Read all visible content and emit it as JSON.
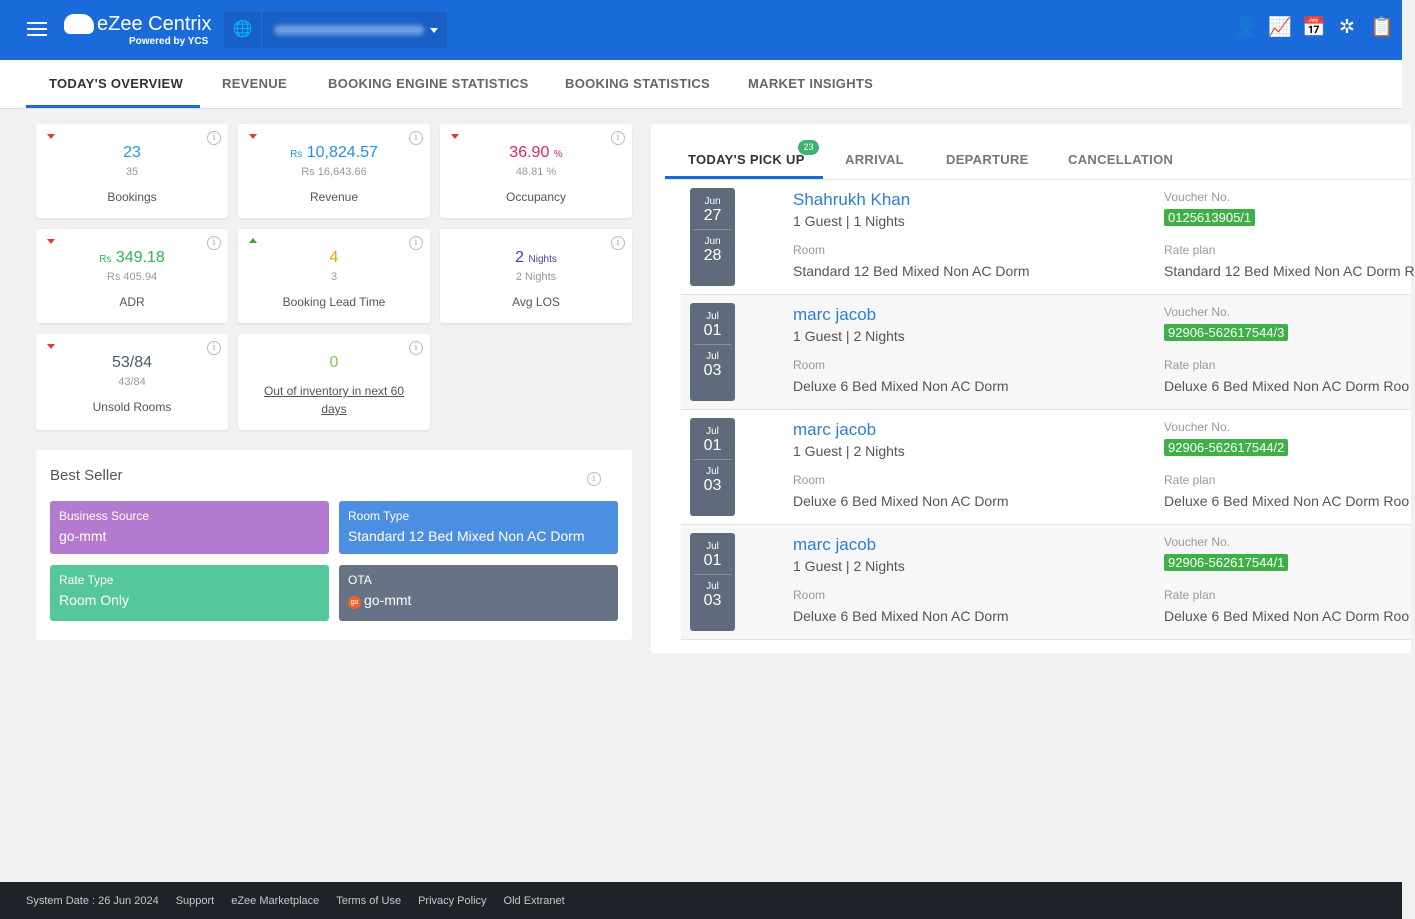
{
  "header": {
    "brand": "eZee Centrix",
    "powered": "Powered by YCS",
    "icons": [
      "user-clock-icon",
      "user-chart-icon",
      "calendar-plus-icon",
      "dollar-network-icon",
      "clipboard-calendar-icon"
    ]
  },
  "tabs": [
    "TODAY'S OVERVIEW",
    "REVENUE",
    "BOOKING ENGINE STATISTICS",
    "BOOKING STATISTICS",
    "MARKET INSIGHTS"
  ],
  "cards": [
    {
      "value": "23",
      "prev": "35",
      "label": "Bookings",
      "trend": "down",
      "color": "#1aa3c2"
    },
    {
      "prefix": "Rs",
      "value": "10,824.57",
      "prev": "Rs 16,643.66",
      "label": "Revenue",
      "trend": "down",
      "color": "#1e90e8"
    },
    {
      "value": "36.90",
      "suffix": "%",
      "prev": "48.81 %",
      "label": "Occupancy",
      "trend": "down",
      "color": "#e0245e"
    },
    {
      "prefix": "Rs",
      "value": "349.18",
      "prev": "Rs 405.94",
      "label": "ADR",
      "trend": "down",
      "color": "#2eb84f"
    },
    {
      "value": "4",
      "prev": "3",
      "label": "Booking Lead Time",
      "trend": "up",
      "color": "#f39c12"
    },
    {
      "value": "2",
      "suffix": "Nights",
      "prev": "2 Nights",
      "label": "Avg LOS",
      "color": "#4a3fa0"
    },
    {
      "value": "53/84",
      "prev": "43/84",
      "label": "Unsold Rooms",
      "trend": "down",
      "color": "#4a5a6a"
    },
    {
      "value": "0",
      "label": "Out of inventory in next 60 days",
      "color": "#8bc34a"
    }
  ],
  "best_seller": {
    "title": "Best Seller",
    "tiles": [
      {
        "key": "Business Source",
        "value": "go-mmt",
        "color": "#b47acf"
      },
      {
        "key": "Room Type",
        "value": "Standard 12 Bed Mixed Non AC Dorm",
        "color": "#4c8fe0"
      },
      {
        "key": "Rate Type",
        "value": "Room Only",
        "color": "#55c89b"
      },
      {
        "key": "OTA",
        "value": "go-mmt",
        "color": "#677385",
        "logo": "go"
      }
    ]
  },
  "pickup": {
    "tabs": [
      "TODAY'S PICK UP",
      "ARRIVAL",
      "DEPARTURE",
      "CANCELLATION"
    ],
    "badge": "23",
    "voucher_label": "Voucher No.",
    "room_label": "Room",
    "rate_label": "Rate plan",
    "rows": [
      {
        "in_m": "Jun",
        "in_d": "27",
        "out_m": "Jun",
        "out_d": "28",
        "name": "Shahrukh Khan",
        "info": "1 Guest | 1 Nights",
        "voucher": "0125613905/1",
        "room": "Standard 12 Bed Mixed Non AC Dorm",
        "rate": "Standard 12 Bed Mixed Non AC Dorm R"
      },
      {
        "in_m": "Jul",
        "in_d": "01",
        "out_m": "Jul",
        "out_d": "03",
        "name": "marc jacob",
        "info": "1 Guest | 2 Nights",
        "voucher": "92906-562617544/3",
        "room": "Deluxe 6 Bed Mixed Non AC Dorm",
        "rate": "Deluxe 6 Bed Mixed Non AC Dorm Roo"
      },
      {
        "in_m": "Jul",
        "in_d": "01",
        "out_m": "Jul",
        "out_d": "03",
        "name": "marc jacob",
        "info": "1 Guest | 2 Nights",
        "voucher": "92906-562617544/2",
        "room": "Deluxe 6 Bed Mixed Non AC Dorm",
        "rate": "Deluxe 6 Bed Mixed Non AC Dorm Roo"
      },
      {
        "in_m": "Jul",
        "in_d": "01",
        "out_m": "Jul",
        "out_d": "03",
        "name": "marc jacob",
        "info": "1 Guest | 2 Nights",
        "voucher": "92906-562617544/1",
        "room": "Deluxe 6 Bed Mixed Non AC Dorm",
        "rate": "Deluxe 6 Bed Mixed Non AC Dorm Roo"
      }
    ]
  },
  "footer": [
    "System Date : 26 Jun 2024",
    "Support",
    "eZee Marketplace",
    "Terms of Use",
    "Privacy Policy",
    "Old Extranet"
  ]
}
